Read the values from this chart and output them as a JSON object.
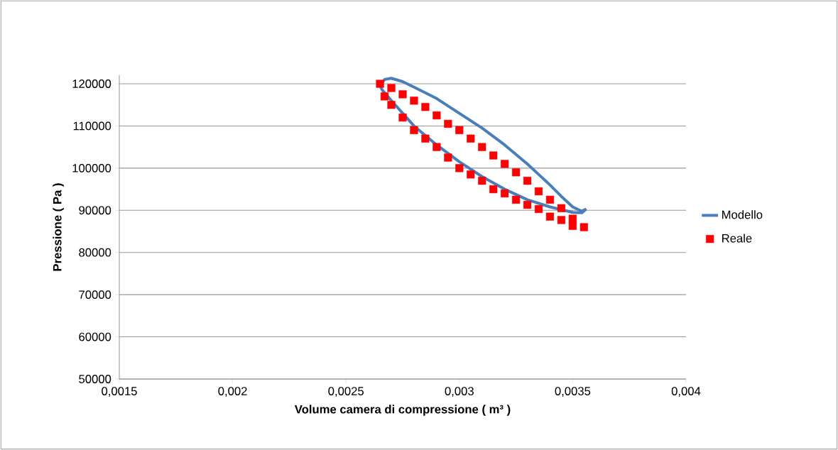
{
  "chart_data": {
    "type": "scatter",
    "xlabel": "Volume camera di compressione ( m³ )",
    "ylabel": "Pressione ( Pa )",
    "xlim": [
      0.0015,
      0.004
    ],
    "xticks": [
      {
        "value": 0.0015,
        "label": "0,0015"
      },
      {
        "value": 0.002,
        "label": "0,002"
      },
      {
        "value": 0.0025,
        "label": "0,0025"
      },
      {
        "value": 0.003,
        "label": "0,003"
      },
      {
        "value": 0.0035,
        "label": "0,0035"
      },
      {
        "value": 0.004,
        "label": "0,004"
      }
    ],
    "ylim": [
      50000,
      122000
    ],
    "yticks": [
      50000,
      60000,
      70000,
      80000,
      90000,
      100000,
      110000,
      120000
    ],
    "grid": "y",
    "legend": "right",
    "series": [
      {
        "name": "Modello",
        "type": "line",
        "color": "#4a7ebb",
        "marker": "none",
        "line_style": "solid",
        "x": [
          0.00265,
          0.00267,
          0.0027,
          0.00275,
          0.0028,
          0.0029,
          0.003,
          0.0031,
          0.0032,
          0.0033,
          0.0034,
          0.00345,
          0.0035,
          0.00354,
          0.00356
        ],
        "values": [
          119500,
          121000,
          121300,
          120500,
          119200,
          116500,
          113000,
          109500,
          105500,
          101000,
          96000,
          93300,
          90800,
          89800,
          90300
        ]
      },
      {
        "type": "line",
        "color": "#4a7ebb",
        "marker": "none",
        "line_style": "solid",
        "x": [
          0.00265,
          0.00266,
          0.0027,
          0.0028,
          0.0029,
          0.003,
          0.0031,
          0.0032,
          0.0033,
          0.0034,
          0.0035,
          0.00354,
          0.00356
        ],
        "values": [
          119500,
          118500,
          116000,
          110000,
          105500,
          101500,
          98000,
          95000,
          92500,
          90800,
          89500,
          89400,
          90300
        ]
      },
      {
        "name": "Reale",
        "type": "scatter",
        "color": "#ff0000",
        "marker": "square",
        "x": [
          0.00265,
          0.0027,
          0.00275,
          0.0028,
          0.00285,
          0.0029,
          0.00295,
          0.003,
          0.00305,
          0.0031,
          0.00315,
          0.0032,
          0.00325,
          0.0033,
          0.00335,
          0.0034,
          0.00345,
          0.0035,
          0.00355,
          0.00267,
          0.0027,
          0.00275,
          0.0028,
          0.00285,
          0.0029,
          0.00295,
          0.003,
          0.00305,
          0.0031,
          0.00315,
          0.0032,
          0.00325,
          0.0033,
          0.00335,
          0.0034,
          0.00345,
          0.0035
        ],
        "values": [
          120000,
          119000,
          117500,
          116000,
          114500,
          112500,
          110500,
          109000,
          107000,
          105000,
          103000,
          101000,
          99000,
          97000,
          94500,
          92500,
          90500,
          88000,
          86000,
          117000,
          115000,
          112000,
          109000,
          107000,
          105000,
          102500,
          100000,
          98500,
          97000,
          95000,
          94000,
          92500,
          91300,
          90300,
          88500,
          87700,
          86300
        ]
      }
    ]
  }
}
